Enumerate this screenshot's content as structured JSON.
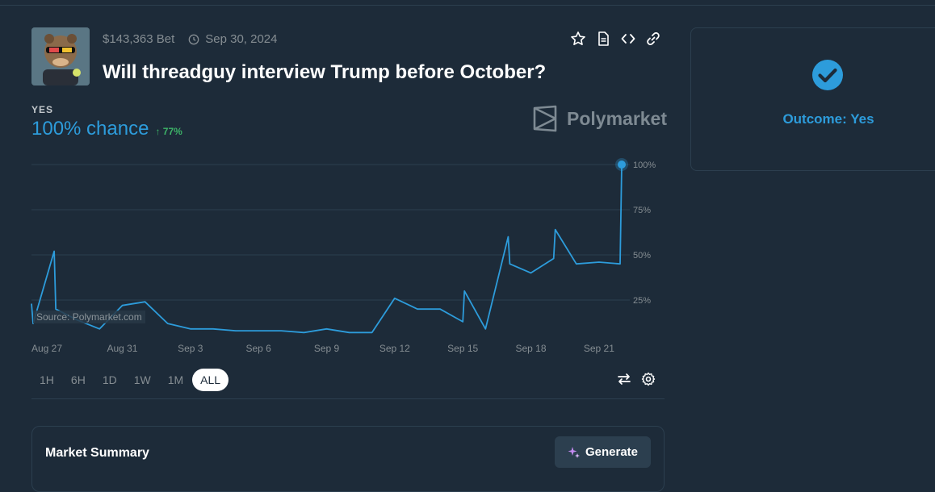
{
  "market": {
    "volume": "$143,363 Bet",
    "end_date": "Sep 30, 2024",
    "question": "Will threadguy interview Trump before October?"
  },
  "actions": {
    "icons": [
      "star-icon",
      "document-icon",
      "code-icon",
      "link-icon"
    ]
  },
  "outcome": {
    "label": "YES",
    "chance": "100% chance",
    "delta": "77%",
    "delta_direction": "up"
  },
  "brand": {
    "name": "Polymarket"
  },
  "chart": {
    "source": "Source: Polymarket.com",
    "ranges": [
      "1H",
      "6H",
      "1D",
      "1W",
      "1M",
      "ALL"
    ],
    "active_range": "ALL"
  },
  "summary": {
    "title": "Market Summary",
    "generate_label": "Generate"
  },
  "resolution": {
    "text": "Outcome: Yes"
  },
  "colors": {
    "accent": "#2d9cdb",
    "positive": "#3db468",
    "background": "#1d2b39",
    "border": "#2c3f4f"
  },
  "chart_data": {
    "type": "line",
    "x_tick_labels": [
      "Aug 27",
      "Aug 31",
      "Sep 3",
      "Sep 6",
      "Sep 9",
      "Sep 12",
      "Sep 15",
      "Sep 18",
      "Sep 21"
    ],
    "y_tick_labels": [
      "100%",
      "75%",
      "50%",
      "25%"
    ],
    "ylim": [
      0,
      100
    ],
    "grid": true,
    "series": [
      {
        "color": "#2d9cdb",
        "values": [
          [
            "Aug 27",
            23
          ],
          [
            "Aug 27",
            12
          ],
          [
            "Aug 28",
            52
          ],
          [
            "Aug 28",
            20
          ],
          [
            "Aug 29",
            14
          ],
          [
            "Aug 30",
            9
          ],
          [
            "Aug 31",
            22
          ],
          [
            "Sep 1",
            24
          ],
          [
            "Sep 2",
            12
          ],
          [
            "Sep 3",
            9
          ],
          [
            "Sep 4",
            9
          ],
          [
            "Sep 5",
            8
          ],
          [
            "Sep 6",
            8
          ],
          [
            "Sep 7",
            8
          ],
          [
            "Sep 8",
            7
          ],
          [
            "Sep 9",
            9
          ],
          [
            "Sep 10",
            7
          ],
          [
            "Sep 11",
            7
          ],
          [
            "Sep 12",
            26
          ],
          [
            "Sep 13",
            20
          ],
          [
            "Sep 14",
            20
          ],
          [
            "Sep 15",
            13
          ],
          [
            "Sep 15",
            30
          ],
          [
            "Sep 16",
            9
          ],
          [
            "Sep 17",
            60
          ],
          [
            "Sep 17",
            45
          ],
          [
            "Sep 18",
            40
          ],
          [
            "Sep 19",
            48
          ],
          [
            "Sep 19",
            64
          ],
          [
            "Sep 20",
            45
          ],
          [
            "Sep 21",
            46
          ],
          [
            "Sep 22",
            45
          ],
          [
            "Sep 22",
            100
          ]
        ]
      }
    ]
  }
}
